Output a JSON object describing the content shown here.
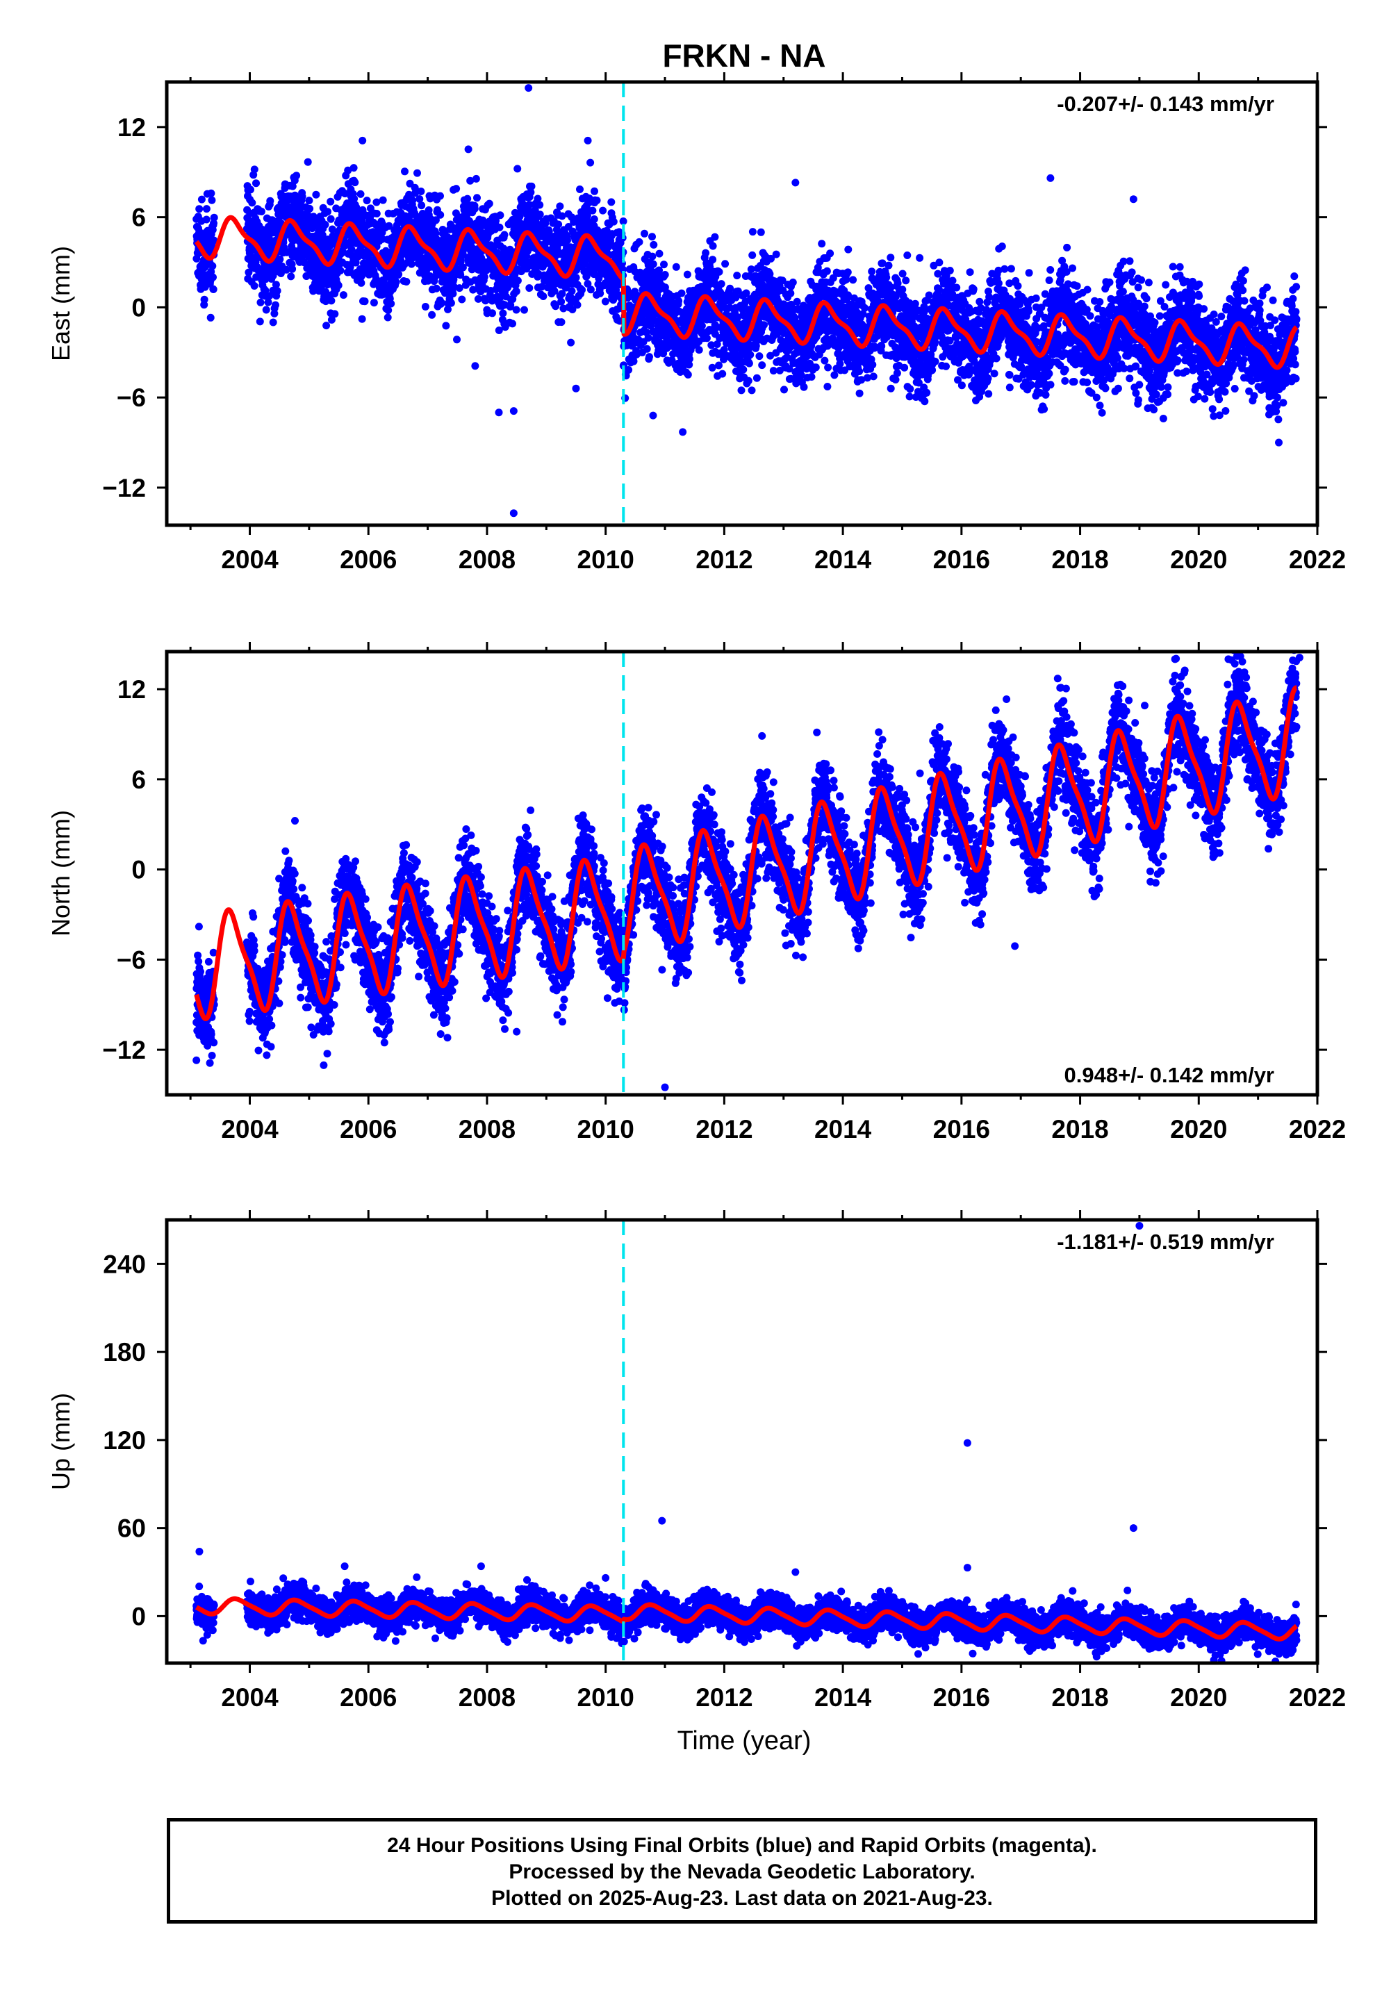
{
  "title": "FRKN - NA",
  "xlabel": "Time (year)",
  "caption": {
    "line1": "24 Hour Positions Using Final Orbits (blue) and Rapid Orbits (magenta).",
    "line2": "Processed by the Nevada Geodetic Laboratory.",
    "line3": "Plotted on 2025-Aug-23. Last data on 2021-Aug-23."
  },
  "colors": {
    "data": "#0000ff",
    "model": "#ff0000",
    "event": "#00e5ee",
    "frame": "#000000"
  },
  "chart_data": [
    {
      "type": "scatter",
      "panel": "east",
      "title": "FRKN - NA",
      "ylabel": "East (mm)",
      "xlabel": "",
      "rate_label": "-0.207+/- 0.143 mm/yr",
      "rate_position": "top-right",
      "xlim": [
        2002.6,
        2022.0
      ],
      "ylim": [
        -14.5,
        15.0
      ],
      "xticks": [
        "2004",
        "2006",
        "2008",
        "2010",
        "2012",
        "2014",
        "2016",
        "2018",
        "2020",
        "2022"
      ],
      "yticks": [
        "12",
        "6",
        "0",
        "−6",
        "−12"
      ],
      "ytick_values": [
        12,
        6,
        0,
        -6,
        -12
      ],
      "event_line_x": 2010.3,
      "data_span": [
        2003.1,
        2021.65
      ],
      "series": [
        {
          "kind": "daily positions",
          "color": "#0000ff",
          "scatter_sd": 1.6,
          "trend_pre": {
            "start": 4.7,
            "slope": -0.2
          },
          "trend_post": {
            "start": -0.4,
            "slope": -0.2
          },
          "annual_amplitude": 1.2,
          "annual_phase": 0.5,
          "semiannual_amplitude": 0.4
        },
        {
          "kind": "model fit",
          "color": "#ff0000"
        }
      ],
      "outliers": [
        [
          2008.7,
          14.6
        ],
        [
          2008.45,
          -13.7
        ],
        [
          2009.7,
          11.1
        ],
        [
          2005.9,
          11.1
        ],
        [
          2008.2,
          -7.0
        ],
        [
          2008.45,
          -6.9
        ],
        [
          2011.3,
          -8.3
        ],
        [
          2021.35,
          -9.0
        ],
        [
          2017.5,
          8.6
        ],
        [
          2018.9,
          7.2
        ],
        [
          2013.2,
          8.3
        ],
        [
          2007.8,
          -3.9
        ],
        [
          2010.8,
          -7.2
        ],
        [
          2009.5,
          -5.4
        ]
      ]
    },
    {
      "type": "scatter",
      "panel": "north",
      "ylabel": "North (mm)",
      "xlabel": "",
      "rate_label": "0.948+/- 0.142 mm/yr",
      "rate_position": "bottom-right",
      "xlim": [
        2002.6,
        2022.0
      ],
      "ylim": [
        -15.0,
        14.5
      ],
      "xticks": [
        "2004",
        "2006",
        "2008",
        "2010",
        "2012",
        "2014",
        "2016",
        "2018",
        "2020",
        "2022"
      ],
      "yticks": [
        "12",
        "6",
        "0",
        "−6",
        "−12"
      ],
      "ytick_values": [
        12,
        6,
        0,
        -6,
        -12
      ],
      "event_line_x": 2010.3,
      "data_span": [
        2003.1,
        2021.65
      ],
      "series": [
        {
          "kind": "daily positions",
          "color": "#0000ff",
          "scatter_sd": 1.5,
          "trend_pre": {
            "start": -6.5,
            "slope": 0.55
          },
          "trend_post": {
            "start": -2.2,
            "slope": 0.95
          },
          "annual_amplitude": 3.2,
          "annual_phase": 0.45,
          "semiannual_amplitude": 0.8
        },
        {
          "kind": "model fit",
          "color": "#ff0000"
        }
      ],
      "outliers": [
        [
          2003.1,
          -12.7
        ],
        [
          2008.5,
          -10.8
        ],
        [
          2011.0,
          -14.5
        ],
        [
          2016.9,
          -5.1
        ],
        [
          2015.3,
          6.4
        ],
        [
          2019.6,
          14.0
        ],
        [
          2020.5,
          14.0
        ],
        [
          2021.7,
          14.1
        ]
      ]
    },
    {
      "type": "scatter",
      "panel": "up",
      "ylabel": "Up (mm)",
      "xlabel": "Time (year)",
      "rate_label": "-1.181+/- 0.519 mm/yr",
      "rate_position": "top-right",
      "xlim": [
        2002.6,
        2022.0
      ],
      "ylim": [
        -32,
        270
      ],
      "xticks": [
        "2004",
        "2006",
        "2008",
        "2010",
        "2012",
        "2014",
        "2016",
        "2018",
        "2020",
        "2022"
      ],
      "yticks": [
        "240",
        "180",
        "120",
        "60",
        "0"
      ],
      "ytick_values": [
        240,
        180,
        120,
        60,
        0
      ],
      "event_line_x": 2010.3,
      "data_span": [
        2003.1,
        2021.65
      ],
      "series": [
        {
          "kind": "daily positions",
          "color": "#0000ff",
          "scatter_sd": 5.5,
          "trend_pre": {
            "start": 7.0,
            "slope": -0.8
          },
          "trend_post": {
            "start": 3.0,
            "slope": -1.2
          },
          "annual_amplitude": 5.0,
          "annual_phase": 0.55,
          "semiannual_amplitude": 1.0
        },
        {
          "kind": "model fit",
          "color": "#ff0000"
        }
      ],
      "outliers": [
        [
          2003.15,
          44
        ],
        [
          2010.95,
          65
        ],
        [
          2016.1,
          118
        ],
        [
          2016.1,
          33
        ],
        [
          2018.9,
          60
        ],
        [
          2019.0,
          266
        ],
        [
          2005.6,
          34
        ],
        [
          2007.9,
          34
        ],
        [
          2013.2,
          30
        ]
      ]
    }
  ]
}
